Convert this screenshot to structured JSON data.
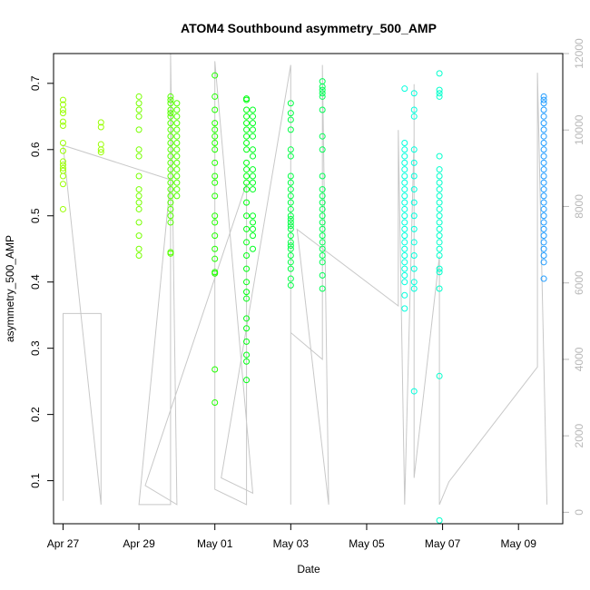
{
  "chart_data": {
    "type": "scatter",
    "title": "ATOM4 Southbound asymmetry_500_AMP",
    "xlabel": "Date",
    "ylabel": "asymmetry_500_AMP",
    "x_axis": {
      "type": "date",
      "range": [
        "2023-04-26 18:00",
        "2023-05-10 04:00"
      ],
      "ticks": [
        {
          "date": "2023-04-27",
          "label": "Apr 27"
        },
        {
          "date": "2023-04-29",
          "label": "Apr 29"
        },
        {
          "date": "2023-05-01",
          "label": "May 01"
        },
        {
          "date": "2023-05-03",
          "label": "May 03"
        },
        {
          "date": "2023-05-05",
          "label": "May 05"
        },
        {
          "date": "2023-05-07",
          "label": "May 07"
        },
        {
          "date": "2023-05-09",
          "label": "May 09"
        }
      ]
    },
    "y_axis_left": {
      "range": [
        0.035,
        0.745
      ],
      "ticks": [
        0.1,
        0.2,
        0.3,
        0.4,
        0.5,
        0.6,
        0.7
      ],
      "tick_labels": [
        "0.1",
        "0.2",
        "0.3",
        "0.4",
        "0.5",
        "0.6",
        "0.7"
      ]
    },
    "y_axis_right": {
      "range": [
        -300,
        12000
      ],
      "ticks": [
        0,
        2000,
        4000,
        6000,
        8000,
        10000,
        12000
      ],
      "tick_labels": [
        "0",
        "2000",
        "4000",
        "6000",
        "8000",
        "10000",
        "12000"
      ],
      "color": "#b8b8b8"
    },
    "grid": false,
    "legend": "none",
    "series": [
      {
        "type": "points",
        "marker": "open-circle",
        "color_scale": "rainbow by time",
        "clusters": [
          {
            "date": "2023-04-27 00:00",
            "color": "#99ff00",
            "points": [
              0.675,
              0.668,
              0.66,
              0.655,
              0.642,
              0.636,
              0.61,
              0.598,
              0.582,
              0.577,
              0.572,
              0.568,
              0.56,
              0.548,
              0.51
            ]
          },
          {
            "date": "2023-04-28 00:00",
            "color": "#99ff00",
            "points": [
              0.641,
              0.634,
              0.608,
              0.6,
              0.596
            ]
          },
          {
            "date": "2023-04-29 00:00",
            "color": "#77ff00",
            "points": [
              0.68,
              0.67,
              0.66,
              0.65,
              0.63,
              0.6,
              0.59,
              0.56,
              0.54,
              0.53,
              0.52,
              0.51,
              0.49,
              0.47,
              0.45,
              0.44
            ]
          },
          {
            "date": "2023-04-29 20:00",
            "color": "#55ff00",
            "points": [
              0.68,
              0.675,
              0.67,
              0.66,
              0.655,
              0.65,
              0.64,
              0.63,
              0.62,
              0.61,
              0.6,
              0.59,
              0.58,
              0.57,
              0.56,
              0.55,
              0.54,
              0.53,
              0.52,
              0.51,
              0.5,
              0.49,
              0.445,
              0.443
            ]
          },
          {
            "date": "2023-04-30 00:00",
            "color": "#55ff00",
            "points": [
              0.67,
              0.66,
              0.65,
              0.64,
              0.63,
              0.62,
              0.61,
              0.6,
              0.59,
              0.58,
              0.57,
              0.56,
              0.55,
              0.54,
              0.53
            ]
          },
          {
            "date": "2023-05-01 00:00",
            "color": "#22ff00",
            "points": [
              0.712,
              0.68,
              0.66,
              0.64,
              0.63,
              0.62,
              0.61,
              0.6,
              0.58,
              0.56,
              0.55,
              0.53,
              0.5,
              0.49,
              0.47,
              0.45,
              0.435,
              0.415,
              0.413,
              0.268,
              0.218
            ]
          },
          {
            "date": "2023-05-01 20:00",
            "color": "#00ff11",
            "points": [
              0.677,
              0.675,
              0.66,
              0.65,
              0.64,
              0.63,
              0.62,
              0.61,
              0.6,
              0.58,
              0.57,
              0.56,
              0.55,
              0.54,
              0.52,
              0.5,
              0.48,
              0.46,
              0.44,
              0.42,
              0.4,
              0.385,
              0.375,
              0.345,
              0.33,
              0.31,
              0.29,
              0.28,
              0.252
            ]
          },
          {
            "date": "2023-05-02 00:00",
            "color": "#00ff22",
            "points": [
              0.66,
              0.65,
              0.64,
              0.63,
              0.62,
              0.6,
              0.59,
              0.57,
              0.56,
              0.55,
              0.54,
              0.5,
              0.49,
              0.48,
              0.47,
              0.45
            ]
          },
          {
            "date": "2023-05-03 00:00",
            "color": "#00ff44",
            "points": [
              0.67,
              0.655,
              0.645,
              0.63,
              0.6,
              0.59,
              0.56,
              0.55,
              0.54,
              0.53,
              0.52,
              0.51,
              0.5,
              0.495,
              0.49,
              0.485,
              0.48,
              0.47,
              0.46,
              0.455,
              0.45,
              0.44,
              0.43,
              0.42,
              0.405,
              0.395
            ]
          },
          {
            "date": "2023-05-03 20:00",
            "color": "#00ff55",
            "points": [
              0.703,
              0.695,
              0.69,
              0.685,
              0.68,
              0.66,
              0.62,
              0.6,
              0.56,
              0.54,
              0.53,
              0.52,
              0.51,
              0.5,
              0.49,
              0.48,
              0.47,
              0.46,
              0.45,
              0.44,
              0.43,
              0.41,
              0.39
            ]
          },
          {
            "date": "2023-05-06 00:00",
            "color": "#00ffdd",
            "points": [
              0.692,
              0.61,
              0.6,
              0.59,
              0.58,
              0.57,
              0.56,
              0.55,
              0.54,
              0.53,
              0.52,
              0.51,
              0.5,
              0.49,
              0.48,
              0.47,
              0.46,
              0.45,
              0.44,
              0.43,
              0.42,
              0.41,
              0.4,
              0.38,
              0.36
            ]
          },
          {
            "date": "2023-05-06 06:00",
            "color": "#00ffdd",
            "points": [
              0.685,
              0.66,
              0.65,
              0.6,
              0.58,
              0.56,
              0.54,
              0.52,
              0.5,
              0.48,
              0.46,
              0.44,
              0.42,
              0.4,
              0.39,
              0.235
            ]
          },
          {
            "date": "2023-05-06 22:00",
            "color": "#00ffcc",
            "points": [
              0.715,
              0.69,
              0.685,
              0.68,
              0.59,
              0.57,
              0.56,
              0.55,
              0.54,
              0.53,
              0.52,
              0.51,
              0.5,
              0.49,
              0.48,
              0.47,
              0.46,
              0.45,
              0.44,
              0.42,
              0.415,
              0.39,
              0.258,
              0.04
            ]
          },
          {
            "date": "2023-05-09 16:00",
            "color": "#1e9bff",
            "points": [
              0.68,
              0.675,
              0.67,
              0.66,
              0.65,
              0.64,
              0.63,
              0.62,
              0.61,
              0.6,
              0.59,
              0.58,
              0.57,
              0.56,
              0.55,
              0.54,
              0.53,
              0.52,
              0.51,
              0.5,
              0.49,
              0.48,
              0.47,
              0.46,
              0.45,
              0.44,
              0.43,
              0.405
            ]
          }
        ]
      },
      {
        "type": "line",
        "axis": "right",
        "color": "#c8c8c8",
        "points": [
          [
            "2023-04-27 00:00",
            300
          ],
          [
            "2023-04-27 00:00",
            5200
          ],
          [
            "2023-04-28 00:00",
            5200
          ],
          [
            "2023-04-28 00:00",
            200
          ],
          [
            "2023-04-27 00:00",
            9600
          ],
          [
            "2023-04-29 20:00",
            8700
          ],
          [
            "2023-04-29 00:00",
            200
          ],
          [
            "2023-04-29 20:00",
            200
          ],
          [
            "2023-04-29 20:00",
            12000
          ],
          [
            "2023-04-30 00:00",
            200
          ],
          [
            "2023-04-29 04:00",
            700
          ],
          [
            "2023-05-01 20:00",
            8600
          ],
          [
            "2023-05-01 20:00",
            200
          ],
          [
            "2023-05-01 00:00",
            600
          ],
          [
            "2023-05-01 00:00",
            11800
          ],
          [
            "2023-05-02 00:00",
            500
          ],
          [
            "2023-05-01 04:00",
            900
          ],
          [
            "2023-05-03 00:00",
            11700
          ],
          [
            "2023-05-03 00:00",
            200
          ],
          [
            "2023-05-03 00:00",
            4700
          ],
          [
            "2023-05-03 20:00",
            4000
          ],
          [
            "2023-05-03 20:00",
            11700
          ],
          [
            "2023-05-04 00:00",
            200
          ],
          [
            "2023-05-03 04:00",
            7400
          ],
          [
            "2023-05-05 20:00",
            5400
          ],
          [
            "2023-05-05 20:00",
            10000
          ],
          [
            "2023-05-06 00:00",
            200
          ],
          [
            "2023-05-06 06:00",
            9800
          ],
          [
            "2023-05-06 06:00",
            11200
          ],
          [
            "2023-05-06 06:00",
            900
          ],
          [
            "2023-05-06 22:00",
            6700
          ],
          [
            "2023-05-06 22:00",
            200
          ],
          [
            "2023-05-07 04:00",
            800
          ],
          [
            "2023-05-09 12:00",
            3800
          ],
          [
            "2023-05-09 12:00",
            11500
          ],
          [
            "2023-05-09 18:00",
            200
          ]
        ]
      }
    ]
  }
}
